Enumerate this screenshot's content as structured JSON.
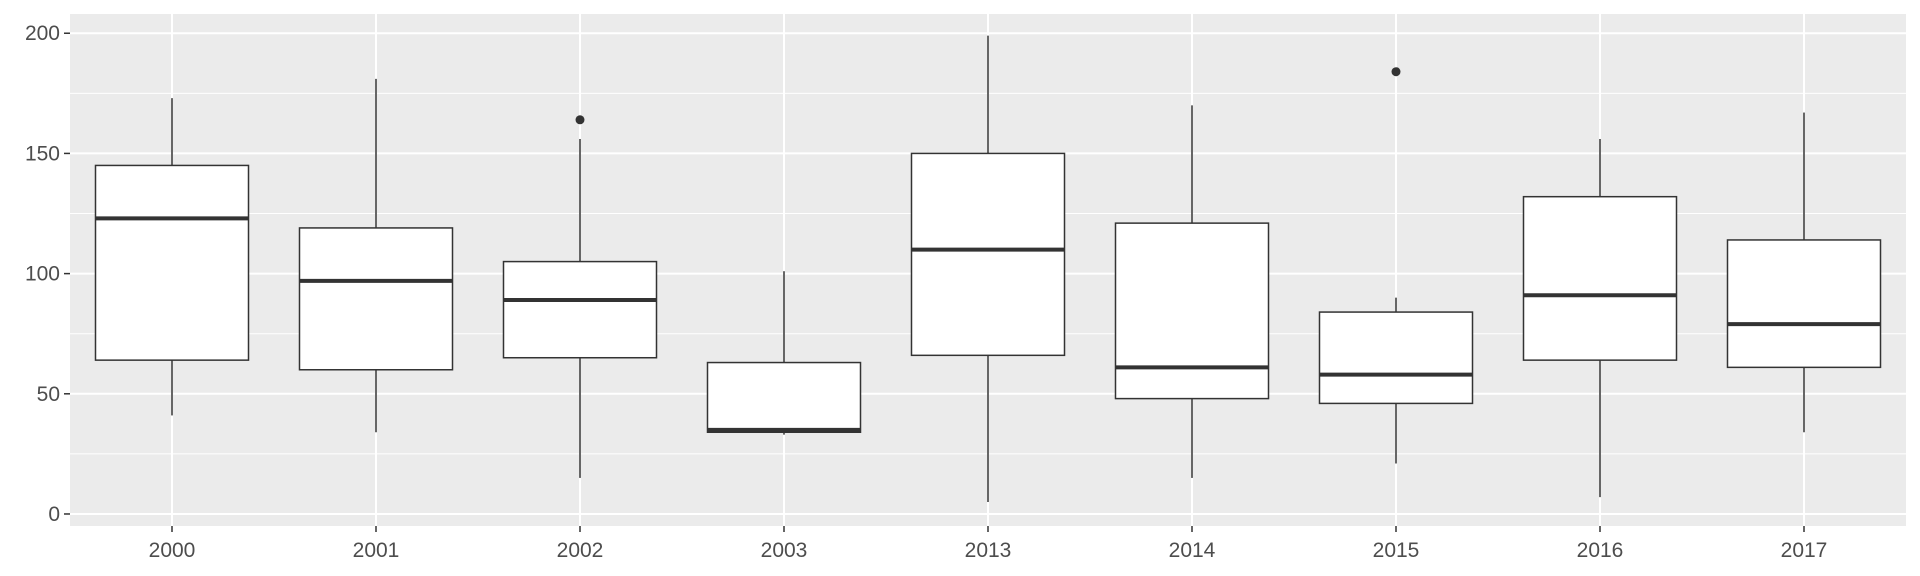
{
  "chart_data": {
    "type": "boxplot",
    "title": "",
    "xlabel": "",
    "ylabel": "",
    "ylim": [
      -5,
      208
    ],
    "y_ticks": [
      0,
      50,
      100,
      150,
      200
    ],
    "grid": true,
    "colors": {
      "panel_background": "#ebebeb",
      "grid_line": "#ffffff",
      "box_fill": "#ffffff",
      "box_line": "#333333",
      "tick_text": "#4d4d4d"
    },
    "categories": [
      "2000",
      "2001",
      "2002",
      "2003",
      "2013",
      "2014",
      "2015",
      "2016",
      "2017"
    ],
    "boxes": [
      {
        "lower_whisker": 41,
        "q1": 64,
        "median": 123,
        "q3": 145,
        "upper_whisker": 173,
        "outliers": []
      },
      {
        "lower_whisker": 34,
        "q1": 60,
        "median": 97,
        "q3": 119,
        "upper_whisker": 181,
        "outliers": []
      },
      {
        "lower_whisker": 15,
        "q1": 65,
        "median": 89,
        "q3": 105,
        "upper_whisker": 156,
        "outliers": [
          164
        ]
      },
      {
        "lower_whisker": 33,
        "q1": 34,
        "median": 35,
        "q3": 63,
        "upper_whisker": 101,
        "outliers": []
      },
      {
        "lower_whisker": 5,
        "q1": 66,
        "median": 110,
        "q3": 150,
        "upper_whisker": 199,
        "outliers": []
      },
      {
        "lower_whisker": 15,
        "q1": 48,
        "median": 61,
        "q3": 121,
        "upper_whisker": 170,
        "outliers": []
      },
      {
        "lower_whisker": 21,
        "q1": 46,
        "median": 58,
        "q3": 84,
        "upper_whisker": 90,
        "outliers": [
          184
        ]
      },
      {
        "lower_whisker": 7,
        "q1": 64,
        "median": 91,
        "q3": 132,
        "upper_whisker": 156,
        "outliers": []
      },
      {
        "lower_whisker": 34,
        "q1": 61,
        "median": 79,
        "q3": 114,
        "upper_whisker": 167,
        "outliers": []
      }
    ]
  }
}
